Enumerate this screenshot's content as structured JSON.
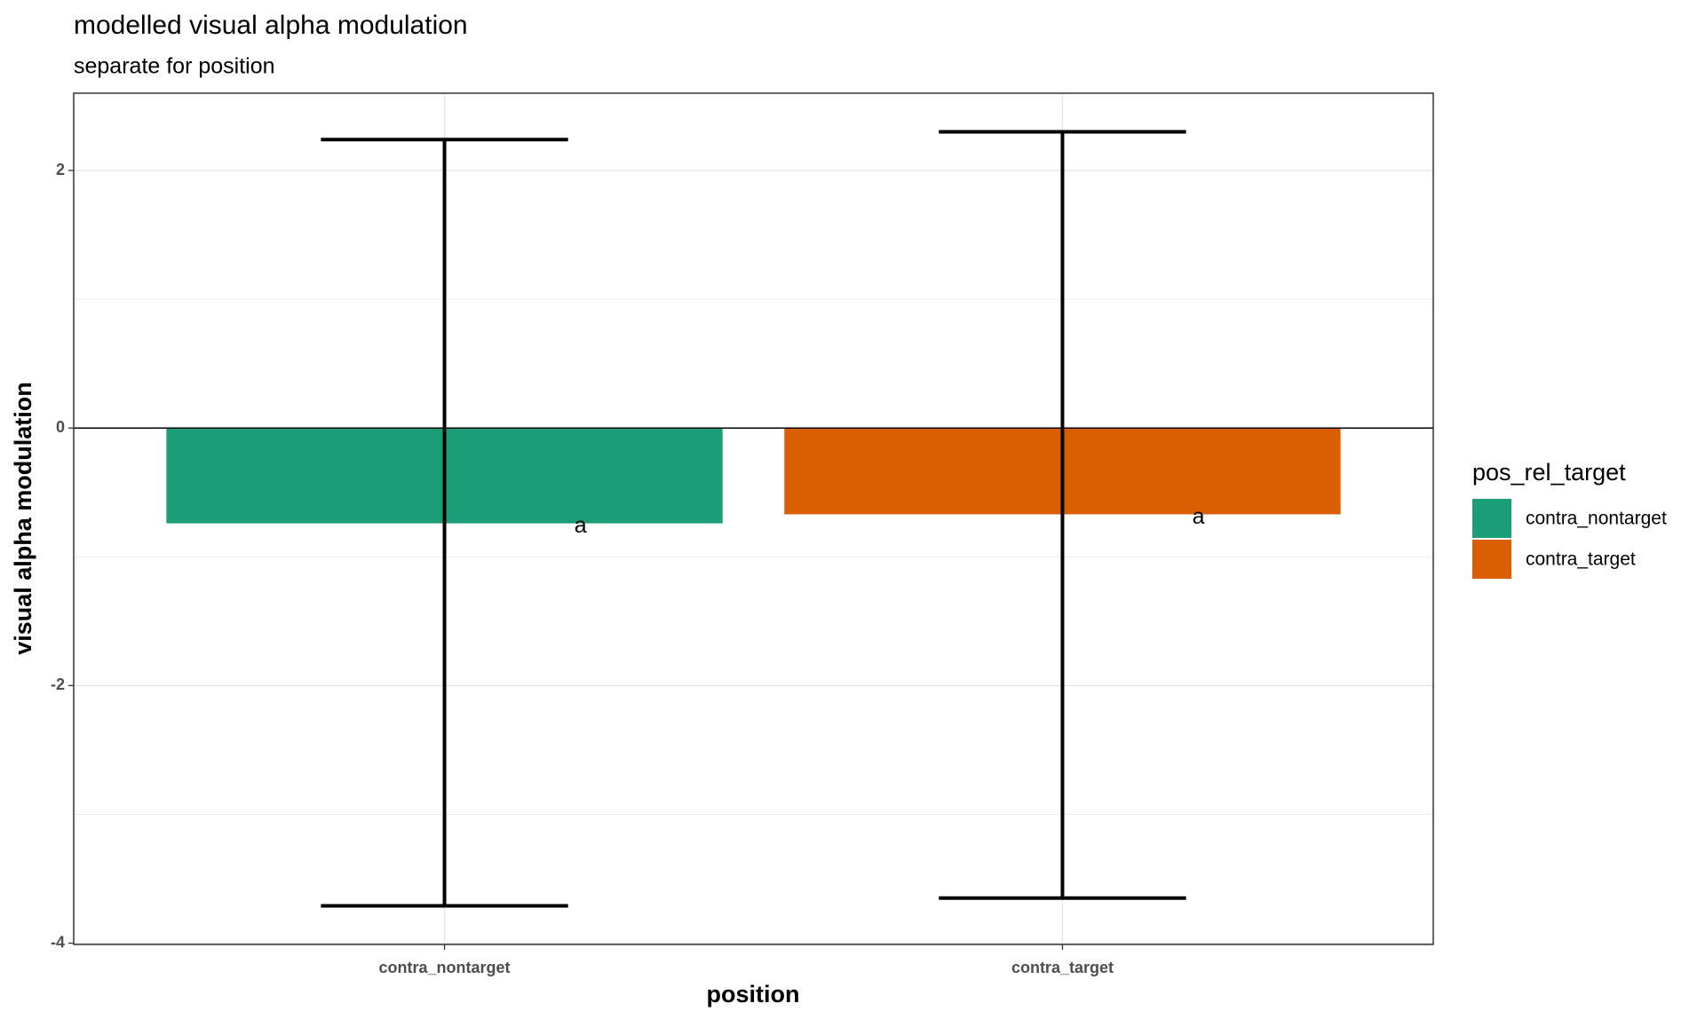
{
  "chart_data": {
    "type": "bar",
    "title": "modelled visual alpha modulation",
    "subtitle": "separate for position",
    "x_label": "position",
    "y_label": "visual alpha modulation",
    "legend_title": "pos_rel_target",
    "categories": [
      "contra_nontarget",
      "contra_target"
    ],
    "values": [
      -0.74,
      -0.67
    ],
    "error_low": [
      -3.71,
      -3.65
    ],
    "error_high": [
      2.24,
      2.3
    ],
    "colors": [
      "#1b9e77",
      "#d95f02"
    ],
    "labels": [
      "a",
      "a"
    ],
    "ylim": [
      -4.01,
      2.6
    ],
    "yticks": [
      -4,
      -2,
      0,
      2
    ],
    "minor_yticks": [
      -3,
      -1,
      1
    ],
    "hline": 0,
    "grid": true
  }
}
